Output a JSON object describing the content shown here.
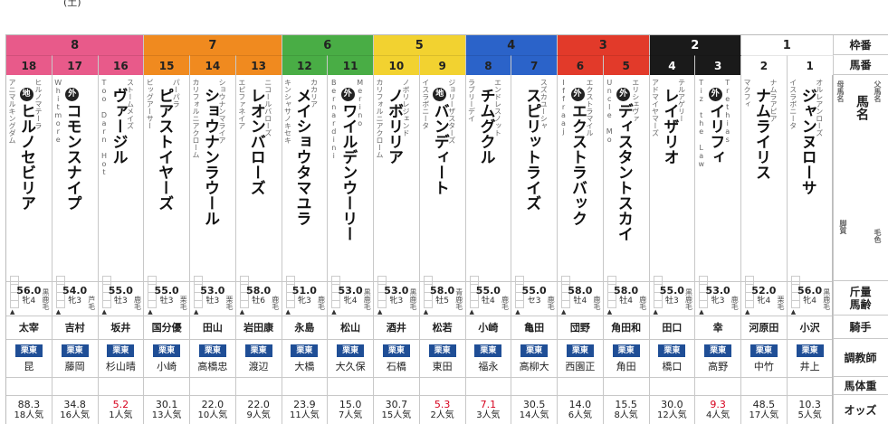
{
  "top_text": "(土)",
  "labels": {
    "gate": "枠番",
    "number": "馬番",
    "sire": "父馬名",
    "horse": "馬名",
    "dam": "母馬名",
    "kyaku": "脚質",
    "color": "毛色",
    "weight": "斤量",
    "age": "馬齢",
    "jockey": "騎手",
    "trainer": "調教師",
    "body_weight": "馬体重",
    "odds": "オッズ"
  },
  "colors": {
    "gate8": "#e85a8a",
    "gate7": "#f08a1f",
    "gate6": "#49ad45",
    "gate5": "#f2d230",
    "gate4": "#2b63c9",
    "gate3": "#e23a2a",
    "gate2": "#1a1a1a",
    "gate1": "#ffffff",
    "trainer_badge": "#1f4e96",
    "odds_highlight": "#d6001c"
  },
  "gates": [
    {
      "label": "8",
      "span": 3,
      "color": "#e85a8a",
      "text": "#222"
    },
    {
      "label": "7",
      "span": 3,
      "color": "#f08a1f",
      "text": "#222"
    },
    {
      "label": "6",
      "span": 2,
      "color": "#49ad45",
      "text": "#222"
    },
    {
      "label": "5",
      "span": 2,
      "color": "#f2d230",
      "text": "#222"
    },
    {
      "label": "4",
      "span": 2,
      "color": "#2b63c9",
      "text": "#222"
    },
    {
      "label": "3",
      "span": 2,
      "color": "#e23a2a",
      "text": "#222"
    },
    {
      "label": "2",
      "span": 2,
      "color": "#1a1a1a",
      "text": "#ffffff"
    },
    {
      "label": "1",
      "span": 2,
      "color": "#ffffff",
      "text": "#222"
    }
  ],
  "horses": [
    {
      "num": "18",
      "sire": "アニマルキングダム",
      "dam": "ヒルノマテーラ",
      "mark": "地",
      "name": "ヒルノセビリア",
      "color": "黒鹿毛",
      "weight": "56.0",
      "age": "牝4",
      "jockey": "太宰",
      "badge": "栗東",
      "trainer": "昆",
      "odds": "88.3",
      "odds_red": false,
      "pop": "18人気"
    },
    {
      "num": "17",
      "sire": "Whitmore",
      "dam": "",
      "mark": "外",
      "name": "コモンスナイプ",
      "color": "芦毛",
      "weight": "54.0",
      "age": "牝3",
      "jockey": "吉村",
      "badge": "栗東",
      "trainer": "藤岡",
      "odds": "34.8",
      "odds_red": false,
      "pop": "16人気"
    },
    {
      "num": "16",
      "sire": "Too Darn Hot",
      "dam": "ストームメイズ",
      "mark": "",
      "name": "ヴァージル",
      "color": "鹿毛",
      "weight": "55.0",
      "age": "牡3",
      "jockey": "坂井",
      "badge": "栗東",
      "trainer": "杉山晴",
      "odds": "5.2",
      "odds_red": true,
      "pop": "1人気"
    },
    {
      "num": "15",
      "sire": "ビッグアーサー",
      "dam": "パーパラ",
      "mark": "",
      "name": "ピアストイヤーズ",
      "color": "栗毛",
      "weight": "55.0",
      "age": "牡3",
      "jockey": "国分優",
      "badge": "栗東",
      "trainer": "小崎",
      "odds": "30.1",
      "odds_red": false,
      "pop": "13人気"
    },
    {
      "num": "14",
      "sire": "カリフォルニアクローム",
      "dam": "ショウナンマライア",
      "mark": "",
      "name": "ショウナンラウール",
      "color": "栗毛",
      "weight": "53.0",
      "age": "牡3",
      "jockey": "田山",
      "badge": "栗東",
      "trainer": "高橋忠",
      "odds": "22.0",
      "odds_red": false,
      "pop": "10人気"
    },
    {
      "num": "13",
      "sire": "エピファネイア",
      "dam": "ニコールバローズ",
      "mark": "",
      "name": "レオンバローズ",
      "color": "鹿毛",
      "weight": "58.0",
      "age": "牡6",
      "jockey": "岩田康",
      "badge": "栗東",
      "trainer": "渡辺",
      "odds": "22.0",
      "odds_red": false,
      "pop": "9人気"
    },
    {
      "num": "12",
      "sire": "キンシャサノキセキ",
      "dam": "カカリア",
      "mark": "",
      "name": "メイショウタマユラ",
      "color": "鹿毛",
      "weight": "51.0",
      "age": "牝3",
      "jockey": "永島",
      "badge": "栗東",
      "trainer": "大橋",
      "odds": "23.9",
      "odds_red": false,
      "pop": "11人気"
    },
    {
      "num": "11",
      "sire": "Bernardini",
      "dam": "Merino",
      "mark": "外",
      "name": "ワイルデンウーリー",
      "color": "黒鹿毛",
      "weight": "53.0",
      "age": "牝4",
      "jockey": "松山",
      "badge": "栗東",
      "trainer": "大久保",
      "odds": "15.0",
      "odds_red": false,
      "pop": "7人気"
    },
    {
      "num": "10",
      "sire": "カリフォルニアクローム",
      "dam": "ノボリレジェンド",
      "mark": "",
      "name": "ノボリリア",
      "color": "黒鹿毛",
      "weight": "53.0",
      "age": "牝3",
      "jockey": "酒井",
      "badge": "栗東",
      "trainer": "石橋",
      "odds": "30.7",
      "odds_red": false,
      "pop": "15人気"
    },
    {
      "num": "9",
      "sire": "イスラボニータ",
      "dam": "ジョリーザスターズ",
      "mark": "地",
      "name": "バンディート",
      "color": "青鹿毛",
      "weight": "58.0",
      "age": "牡5",
      "jockey": "松若",
      "badge": "栗東",
      "trainer": "東田",
      "odds": "5.3",
      "odds_red": true,
      "pop": "2人気"
    },
    {
      "num": "8",
      "sire": "ラブリーデイ",
      "dam": "エンドレスノット",
      "mark": "",
      "name": "チムグクル",
      "color": "鹿毛",
      "weight": "55.0",
      "age": "牡4",
      "jockey": "小崎",
      "badge": "栗東",
      "trainer": "福永",
      "odds": "7.1",
      "odds_red": true,
      "pop": "3人気"
    },
    {
      "num": "7",
      "sire": "",
      "dam": "スズカユーシャ",
      "mark": "",
      "name": "スピリットライズ",
      "color": "鹿毛",
      "weight": "55.0",
      "age": "セ3",
      "jockey": "亀田",
      "badge": "栗東",
      "trainer": "高柳大",
      "odds": "30.5",
      "odds_red": false,
      "pop": "14人気"
    },
    {
      "num": "6",
      "sire": "Iffraaj",
      "dam": "エクストラマイル",
      "mark": "外",
      "name": "エクストラバック",
      "color": "鹿毛",
      "weight": "58.0",
      "age": "牡4",
      "jockey": "団野",
      "badge": "栗東",
      "trainer": "西園正",
      "odds": "14.0",
      "odds_red": false,
      "pop": "6人気"
    },
    {
      "num": "5",
      "sire": "Uncle Mo",
      "dam": "エリシェヴァ",
      "mark": "外",
      "name": "ディスタントスカイ",
      "color": "鹿毛",
      "weight": "58.0",
      "age": "牡4",
      "jockey": "角田和",
      "badge": "栗東",
      "trainer": "角田",
      "odds": "15.5",
      "odds_red": false,
      "pop": "8人気"
    },
    {
      "num": "4",
      "sire": "アドマイヤマーズ",
      "dam": "テルアゲリー",
      "mark": "",
      "name": "レイザリオ",
      "color": "黒鹿毛",
      "weight": "55.0",
      "age": "牡3",
      "jockey": "田口",
      "badge": "栗東",
      "trainer": "橋口",
      "odds": "30.0",
      "odds_red": false,
      "pop": "12人気"
    },
    {
      "num": "3",
      "sire": "Tiz the Law",
      "dam": "Trethias",
      "mark": "外",
      "name": "イリフィ",
      "color": "鹿毛",
      "weight": "53.0",
      "age": "牝3",
      "jockey": "幸",
      "badge": "栗東",
      "trainer": "高野",
      "odds": "9.3",
      "odds_red": true,
      "pop": "4人気"
    },
    {
      "num": "2",
      "sire": "マクフィ",
      "dam": "ナムラアピア",
      "mark": "",
      "name": "ナムライリス",
      "color": "栗毛",
      "weight": "52.0",
      "age": "牝4",
      "jockey": "河原田",
      "badge": "栗東",
      "trainer": "中竹",
      "odds": "48.5",
      "odds_red": false,
      "pop": "17人気"
    },
    {
      "num": "1",
      "sire": "イスラボニータ",
      "dam": "オルレアンローズ",
      "mark": "",
      "name": "ジャンヌローサ",
      "color": "黒鹿毛",
      "weight": "56.0",
      "age": "牝4",
      "jockey": "小沢",
      "badge": "栗東",
      "trainer": "井上",
      "odds": "10.3",
      "odds_red": false,
      "pop": "5人気"
    }
  ]
}
